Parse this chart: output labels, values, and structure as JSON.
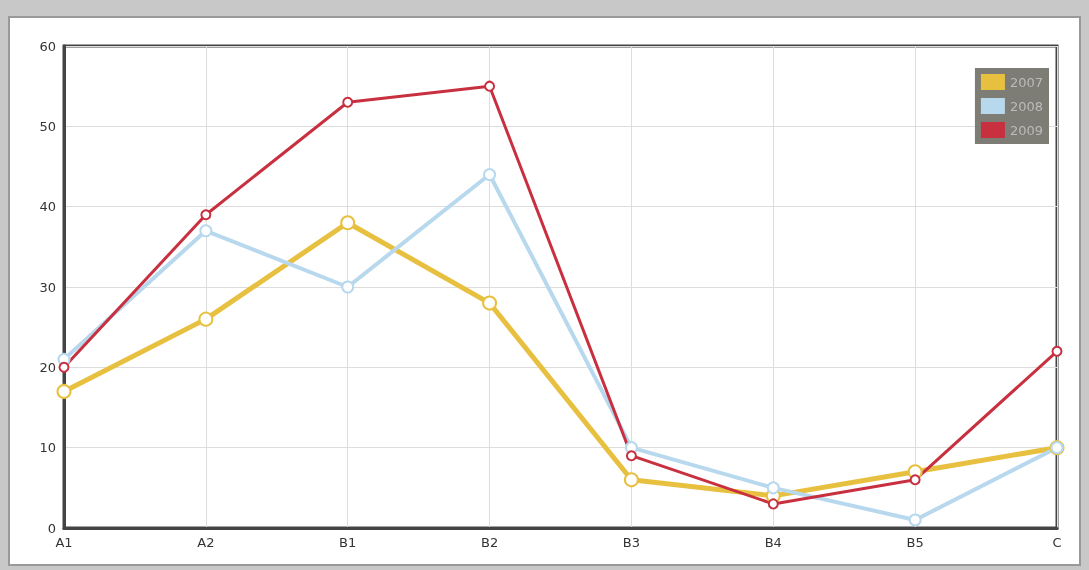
{
  "chart_data": {
    "type": "line",
    "categories": [
      "A1",
      "A2",
      "B1",
      "B2",
      "B3",
      "B4",
      "B5",
      "C"
    ],
    "series": [
      {
        "name": "2007",
        "color": "#e8c040",
        "values": [
          17,
          26,
          38,
          28,
          6,
          4,
          7,
          10
        ]
      },
      {
        "name": "2008",
        "color": "#b8d8ee",
        "values": [
          21,
          37,
          30,
          44,
          10,
          5,
          1,
          10
        ]
      },
      {
        "name": "2009",
        "color": "#c83040",
        "values": [
          20,
          39,
          53,
          55,
          9,
          3,
          6,
          22
        ]
      }
    ],
    "ylim": [
      0,
      60
    ],
    "yticks": [
      0,
      10,
      20,
      30,
      40,
      50,
      60
    ],
    "grid": true,
    "legend": "top right",
    "marker": "circle",
    "line_style": "solid"
  }
}
